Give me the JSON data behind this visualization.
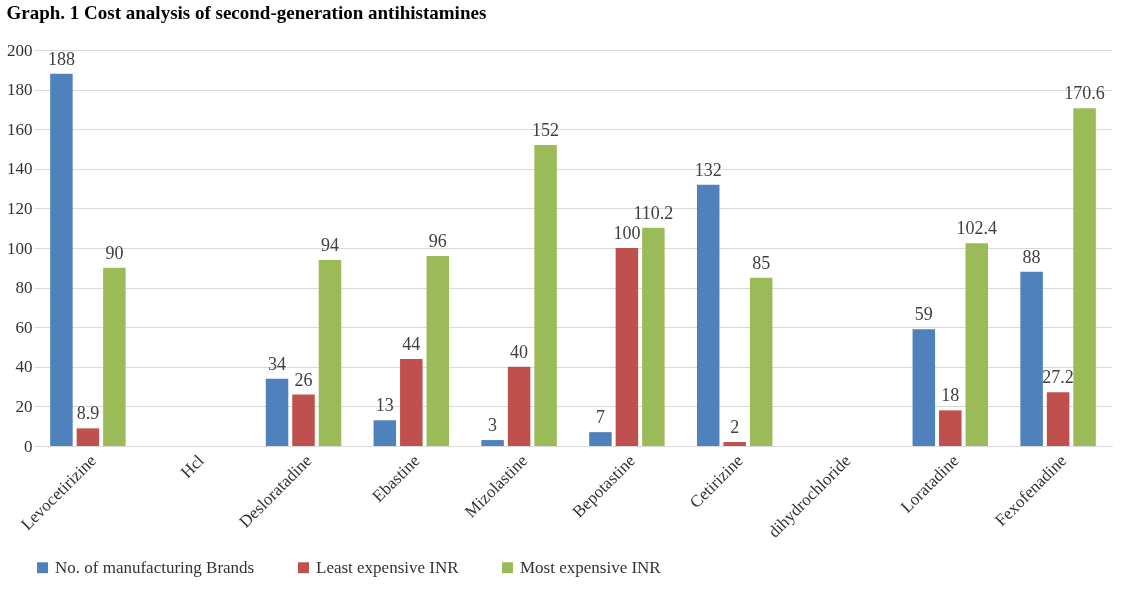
{
  "chart_data": {
    "type": "bar",
    "title": "Graph. 1 Cost analysis of second-generation antihistamines",
    "categories": [
      "Levocetirizine",
      "Hcl",
      "Desloratadine",
      "Ebastine",
      "Mizolastine",
      "Bepotastine",
      "Cetirizine",
      "dihydrochloride",
      "Loratadine",
      "Fexofenadine"
    ],
    "series": [
      {
        "name": "No. of manufacturing Brands",
        "color": "#4f81bd",
        "values": [
          188,
          null,
          34,
          13,
          3,
          7,
          132,
          null,
          59,
          88
        ]
      },
      {
        "name": "Least expensive INR",
        "color": "#c0504d",
        "values": [
          8.9,
          null,
          26,
          44,
          40,
          100,
          2,
          null,
          18,
          27.2
        ]
      },
      {
        "name": "Most expensive INR",
        "color": "#9bbb59",
        "values": [
          90,
          null,
          94,
          96,
          152,
          110.2,
          85,
          null,
          102.4,
          170.6
        ]
      }
    ],
    "ylim": [
      0,
      200
    ],
    "yticks": [
      0,
      20,
      40,
      60,
      80,
      100,
      120,
      140,
      160,
      180,
      200
    ],
    "grid": "y",
    "legend": "bottom",
    "data_labels": true
  }
}
